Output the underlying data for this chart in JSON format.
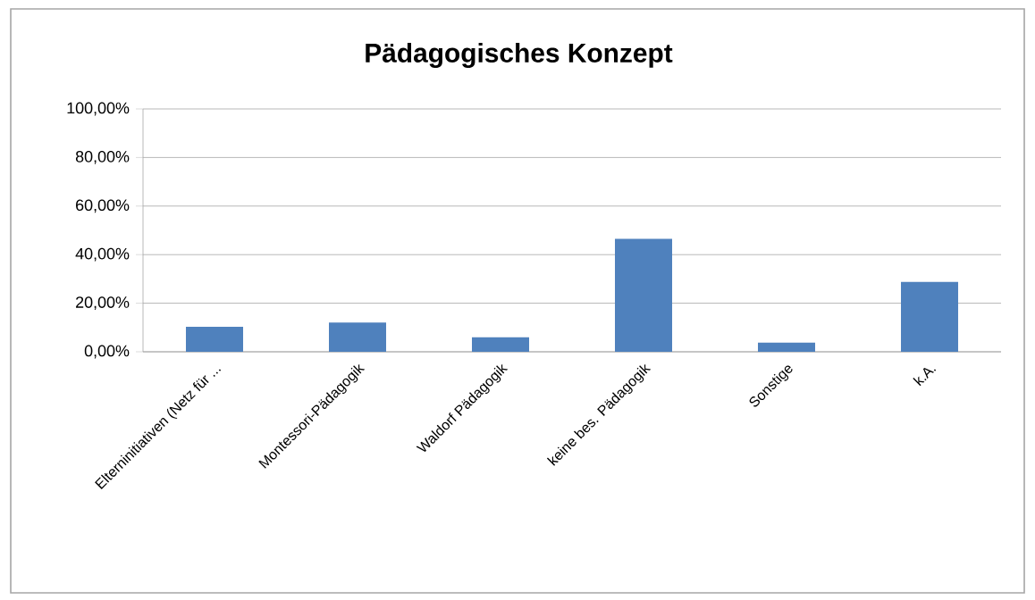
{
  "chart_data": {
    "type": "bar",
    "title": "Pädagogisches Konzept",
    "categories": [
      "Elterninitiativen (Netz für ...",
      "Montessori-Pädagogik",
      "Waldorf Pädagogik",
      "keine bes. Pädagogik",
      "Sonstige",
      "k.A."
    ],
    "values": [
      10.3,
      12.0,
      6.0,
      46.5,
      3.8,
      28.8
    ],
    "color": "#4f81bd",
    "ylim": [
      0,
      100
    ],
    "yticks": [
      {
        "value": 0,
        "label": "0,00%"
      },
      {
        "value": 20,
        "label": "20,00%"
      },
      {
        "value": 40,
        "label": "40,00%"
      },
      {
        "value": 60,
        "label": "60,00%"
      },
      {
        "value": 80,
        "label": "80,00%"
      },
      {
        "value": 100,
        "label": "100,00%"
      }
    ],
    "grid": "y"
  }
}
